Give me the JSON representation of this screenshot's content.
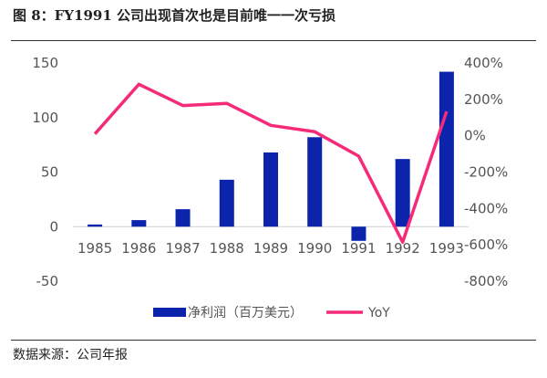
{
  "title": "图 8：FY1991 公司出现首次也是目前唯一一次亏损",
  "source": "数据来源：公司年报",
  "chart_data": {
    "type": "bar+line",
    "categories": [
      "1985",
      "1986",
      "1987",
      "1988",
      "1989",
      "1990",
      "1991",
      "1992",
      "1993"
    ],
    "series": [
      {
        "name": "净利润（百万美元）",
        "type": "bar",
        "axis": "left",
        "color": "#0b24ab",
        "values": [
          2,
          6,
          16,
          43,
          68,
          82,
          -13,
          62,
          142
        ]
      },
      {
        "name": "YoY",
        "type": "line",
        "axis": "right",
        "color": "#f52a78",
        "values": [
          10,
          283,
          166,
          178,
          57,
          22,
          -112,
          -585,
          134
        ]
      }
    ],
    "left_axis": {
      "ylim": [
        -50,
        150
      ],
      "ticks": [
        "-50",
        "0",
        "50",
        "100",
        "150"
      ]
    },
    "right_axis": {
      "ylim": [
        -800,
        400
      ],
      "ticks": [
        "-800%",
        "-600%",
        "-400%",
        "-200%",
        "0%",
        "200%",
        "400%"
      ]
    },
    "grid": false,
    "legend": "bottom"
  }
}
